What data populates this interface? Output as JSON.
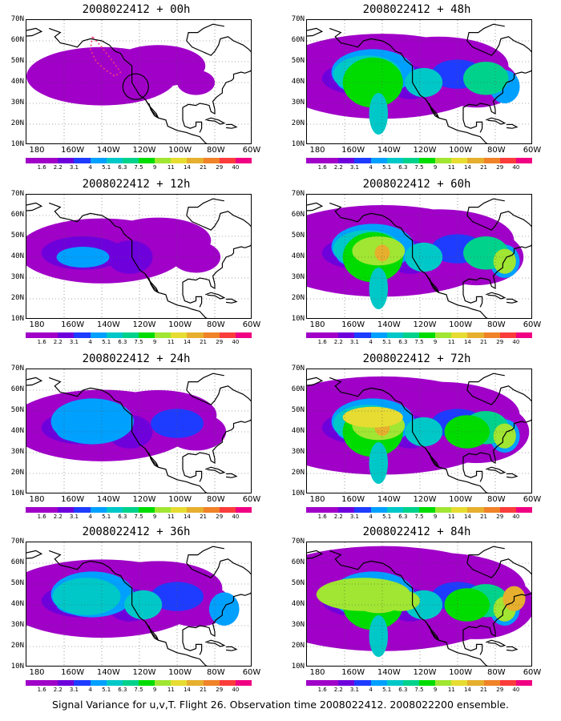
{
  "panels": [
    {
      "title": "2008022412 + 00h",
      "intensity": 0
    },
    {
      "title": "2008022412 + 48h",
      "intensity": 4
    },
    {
      "title": "2008022412 + 12h",
      "intensity": 1
    },
    {
      "title": "2008022412 + 60h",
      "intensity": 5
    },
    {
      "title": "2008022412 + 24h",
      "intensity": 2
    },
    {
      "title": "2008022412 + 72h",
      "intensity": 6
    },
    {
      "title": "2008022412 + 36h",
      "intensity": 3
    },
    {
      "title": "2008022412 + 84h",
      "intensity": 7
    }
  ],
  "lat_labels": [
    "70N",
    "60N",
    "50N",
    "40N",
    "30N",
    "20N",
    "10N"
  ],
  "lon_labels": [
    "180",
    "160W",
    "140W",
    "120W",
    "100W",
    "80W",
    "60W"
  ],
  "colorbar": {
    "levels": [
      "1.6",
      "2.2",
      "3.1",
      "4",
      "5.1",
      "6.3",
      "7.5",
      "9",
      "11",
      "14",
      "21",
      "29",
      "40"
    ],
    "colors": [
      "#a000c8",
      "#6e00dc",
      "#1e3cff",
      "#00a0ff",
      "#00c8c8",
      "#00d28c",
      "#00dc00",
      "#a0e632",
      "#e6dc32",
      "#e6af2d",
      "#f08228",
      "#fa3c3c",
      "#f00082"
    ]
  },
  "caption": "Signal Variance for u,v,T. Flight 26. Observation time 2008022412. 2008022200 ensemble."
}
